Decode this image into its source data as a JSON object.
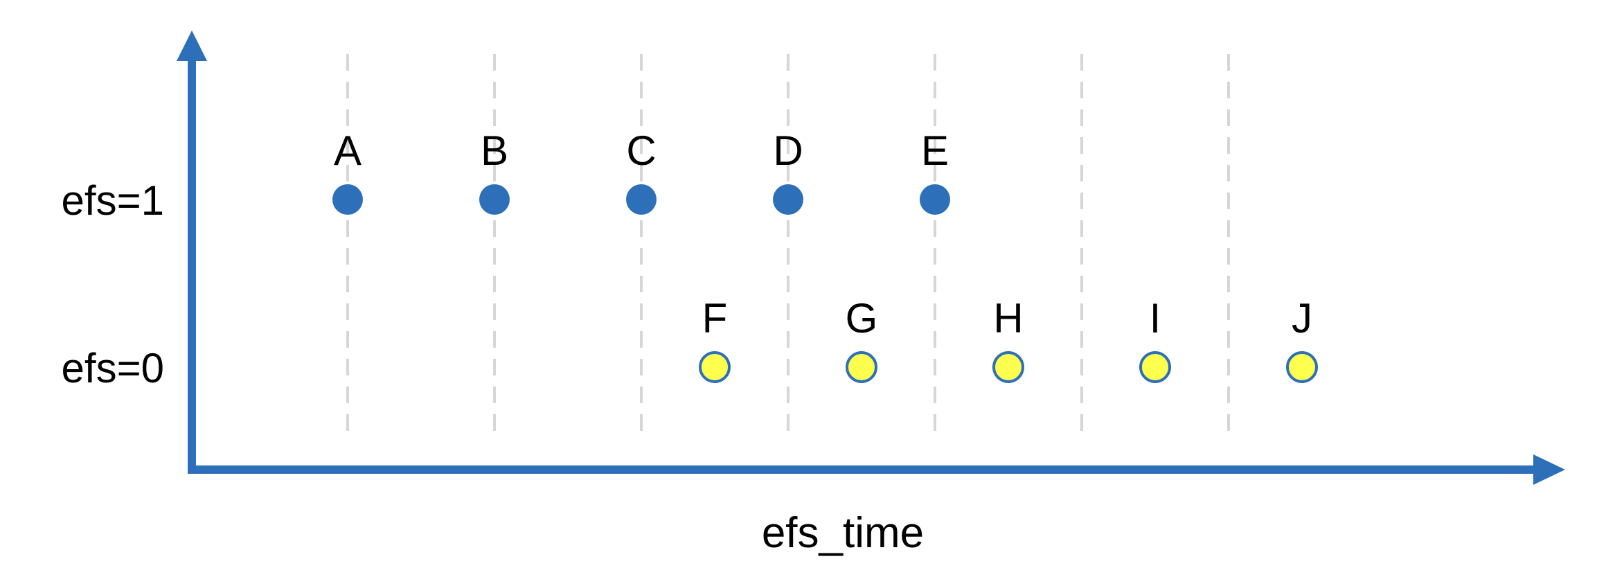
{
  "chart_data": {
    "type": "scatter",
    "xlabel": "efs_time",
    "ylabel": "",
    "rows": [
      {
        "label": "efs=1",
        "value": 1
      },
      {
        "label": "efs=0",
        "value": 0
      }
    ],
    "points": [
      {
        "label": "A",
        "time": 1,
        "efs": 1
      },
      {
        "label": "B",
        "time": 2,
        "efs": 1
      },
      {
        "label": "C",
        "time": 3,
        "efs": 1
      },
      {
        "label": "D",
        "time": 4,
        "efs": 1
      },
      {
        "label": "E",
        "time": 5,
        "efs": 1
      },
      {
        "label": "F",
        "time": 3.5,
        "efs": 0
      },
      {
        "label": "G",
        "time": 4.5,
        "efs": 0
      },
      {
        "label": "H",
        "time": 5.5,
        "efs": 0
      },
      {
        "label": "I",
        "time": 6.5,
        "efs": 0
      },
      {
        "label": "J",
        "time": 7.5,
        "efs": 0
      }
    ],
    "gridlines_x": [
      1,
      2,
      3,
      4,
      5,
      6,
      7
    ],
    "grid": true,
    "colors": {
      "axis": "#2e6fba",
      "efs1_fill": "#2e6fba",
      "efs0_fill": "#ffff4d",
      "efs0_stroke": "#2e6fba",
      "grid": "#d6d6d6"
    }
  }
}
